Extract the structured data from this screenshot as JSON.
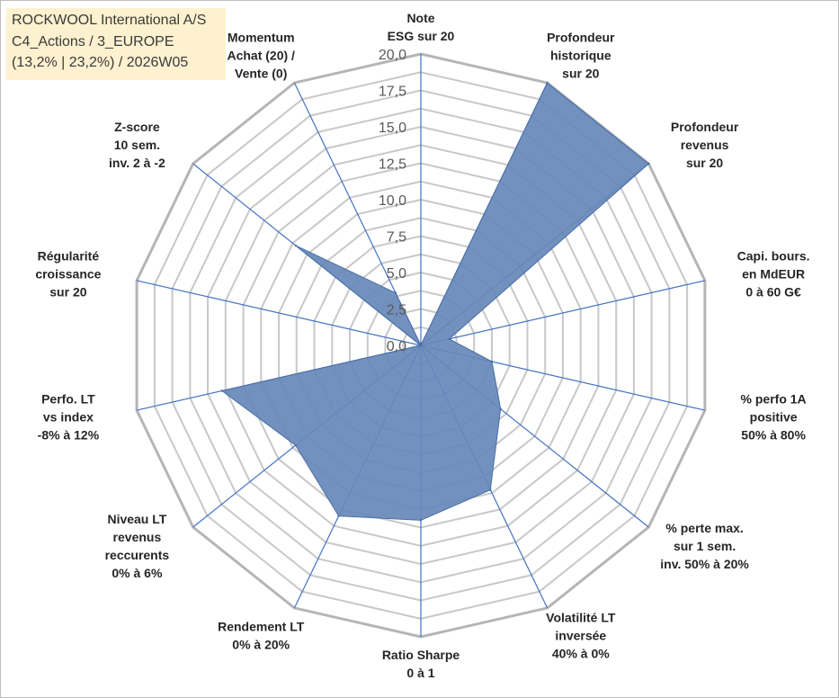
{
  "header": {
    "line1": "ROCKWOOL International A/S",
    "line2": "C4_Actions / 3_EUROPE",
    "line3": "(13,2% | 23,2%) / 2026W05"
  },
  "chart_data": {
    "type": "radar",
    "rmax": 20,
    "tick_step": 2.5,
    "tick_labels": [
      "0,0",
      "2,5",
      "5,0",
      "7,5",
      "10,0",
      "12,5",
      "15,0",
      "17,5",
      "20,0"
    ],
    "categories": [
      [
        "Note",
        "ESG sur 20"
      ],
      [
        "Profondeur",
        "historique",
        "sur 20"
      ],
      [
        "Profondeur",
        "revenus",
        "sur 20"
      ],
      [
        "Capi. bours.",
        "en MdEUR",
        "0 à 60 G€"
      ],
      [
        "% perfo 1A",
        "positive",
        "50% à 80%"
      ],
      [
        "% perte max.",
        "sur 1 sem.",
        "inv. 50% à 20%"
      ],
      [
        "Volatilité LT",
        "inversée",
        "40% à 0%"
      ],
      [
        "Ratio Sharpe",
        "0 à 1"
      ],
      [
        "Rendement LT",
        "0% à 20%"
      ],
      [
        "Niveau LT",
        "revenus",
        "reccurents",
        "0% à 6%"
      ],
      [
        "Perfo. LT",
        "vs index",
        "-8% à 12%"
      ],
      [
        "Régularité",
        "croissance",
        "sur 20"
      ],
      [
        "Z-score",
        "10 sem.",
        "inv. 2 à -2"
      ],
      [
        "Momentum",
        "Achat (20) /",
        "Vente (0)"
      ]
    ],
    "values": [
      0,
      20,
      20,
      2,
      5,
      7,
      11,
      12,
      13,
      11,
      14,
      0,
      11,
      4
    ],
    "fill_color": "#6688b8",
    "spoke_color": "#4472c4",
    "grid_color": "#c8c8c8",
    "outer_ring_color": "#b5b5b5"
  }
}
